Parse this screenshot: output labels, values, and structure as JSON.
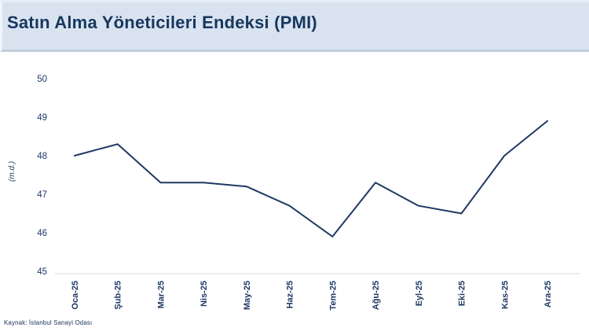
{
  "header": {
    "title": "Satın Alma Yöneticileri Endeksi (PMI)"
  },
  "chart_data": {
    "type": "line",
    "title": "Satın Alma Yöneticileri Endeksi (PMI)",
    "categories": [
      "Oca-25",
      "Şub-25",
      "Mar-25",
      "Nis-25",
      "May-25",
      "Haz-25",
      "Tem-25",
      "Ağu-25",
      "Eyl-25",
      "Eki-25",
      "Kas-25",
      "Ara-25"
    ],
    "values": [
      48.0,
      48.3,
      47.3,
      47.3,
      47.2,
      46.7,
      45.9,
      47.3,
      46.7,
      46.5,
      48.0,
      48.9
    ],
    "xlabel": "",
    "ylabel": "(m.d.)",
    "ylim": [
      45,
      50
    ],
    "yticks": [
      45,
      46,
      47,
      48,
      49,
      50
    ],
    "grid": false,
    "legend": false,
    "line_color": "#1f3864"
  },
  "footer": {
    "source": "Kaynak: İstanbul Sanayi Odası"
  },
  "colors": {
    "header_bg": "#d9e3f0",
    "title_text": "#17375d",
    "label_text": "#1f3864",
    "axis_line": "#d9d9d9",
    "line": "#1f3864"
  }
}
